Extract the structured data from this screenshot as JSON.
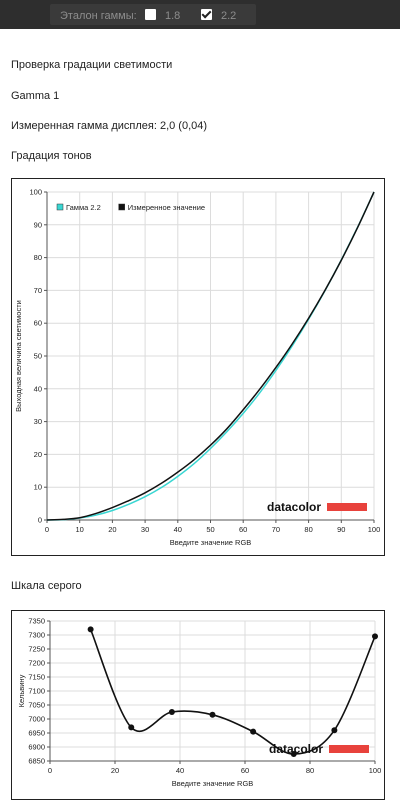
{
  "toolbar": {
    "label": "Эталон гаммы:",
    "option_1": {
      "value": "1.8",
      "checked": false
    },
    "option_2": {
      "value": "2.2",
      "checked": true
    }
  },
  "section_title": "Проверка градации светимости",
  "gamma_name": "Gamma 1",
  "measured_gamma": "Измеренная гамма дисплея: 2,0 (0,04)",
  "tone_title": "Градация тонов",
  "gray_title": "Шкала серого",
  "brand": {
    "text": "datacolor",
    "bar_color": "#e8423c"
  },
  "colors": {
    "reference": "#39d6d2",
    "measured": "#111111"
  },
  "chart_data": [
    {
      "type": "line",
      "xlabel": "Введите значение RGB",
      "ylabel": "Выходная величина светимости",
      "xlim": [
        0,
        100
      ],
      "ylim": [
        0,
        100
      ],
      "xticks": [
        0,
        10,
        20,
        30,
        40,
        50,
        60,
        70,
        80,
        90,
        100
      ],
      "yticks": [
        0,
        10,
        20,
        30,
        40,
        50,
        60,
        70,
        80,
        90,
        100
      ],
      "legend_position": "top-left",
      "grid": true,
      "series": [
        {
          "name": "Гамма 2.2",
          "color": "#39d6d2",
          "x": [
            0,
            5,
            10,
            15,
            20,
            25,
            30,
            35,
            40,
            45,
            50,
            55,
            60,
            65,
            70,
            75,
            80,
            85,
            90,
            95,
            100
          ],
          "y": [
            0,
            0.1,
            0.6,
            1.5,
            2.9,
            4.8,
            7.1,
            9.9,
            13.3,
            17.2,
            21.8,
            26.9,
            32.5,
            38.7,
            45.6,
            53.1,
            61.2,
            69.9,
            79.3,
            89.3,
            100
          ]
        },
        {
          "name": "Измеренное значение",
          "color": "#111111",
          "x": [
            0,
            5,
            10,
            15,
            20,
            25,
            30,
            35,
            40,
            45,
            50,
            55,
            60,
            65,
            70,
            75,
            80,
            85,
            90,
            95,
            100
          ],
          "y": [
            0,
            0.2,
            0.7,
            2.0,
            3.8,
            5.9,
            8.3,
            11.2,
            14.6,
            18.4,
            22.8,
            27.8,
            33.6,
            39.8,
            46.5,
            53.7,
            61.5,
            70.0,
            79.2,
            89.2,
            100
          ]
        }
      ]
    },
    {
      "type": "line",
      "xlabel": "Введите значение RGB",
      "ylabel": "Кельвину",
      "xlim": [
        0,
        100
      ],
      "ylim": [
        6850,
        7350
      ],
      "xticks": [
        0,
        20,
        40,
        60,
        80,
        100
      ],
      "yticks": [
        6850,
        6900,
        6950,
        7000,
        7050,
        7100,
        7150,
        7200,
        7250,
        7300,
        7350
      ],
      "grid": true,
      "series": [
        {
          "color": "#111111",
          "x": [
            12.5,
            25,
            37.5,
            50,
            62.5,
            75,
            87.5,
            100
          ],
          "y": [
            7320,
            6970,
            7025,
            7015,
            6955,
            6875,
            6960,
            7295
          ]
        }
      ]
    }
  ]
}
